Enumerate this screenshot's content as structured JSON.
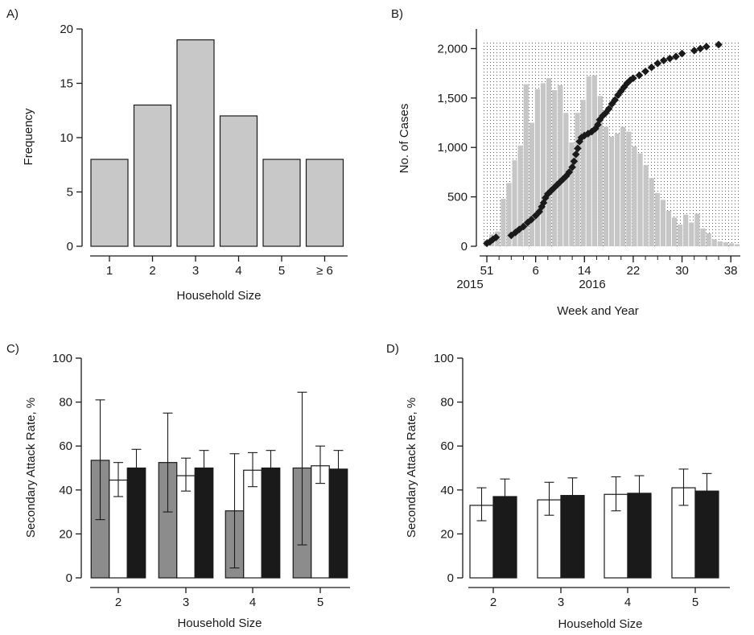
{
  "chart_data": [
    {
      "panel": "A)",
      "type": "bar",
      "categories": [
        "1",
        "2",
        "3",
        "4",
        "5",
        "≥ 6"
      ],
      "values": [
        8,
        13,
        19,
        12,
        8,
        8
      ],
      "xlabel": "Household Size",
      "ylabel": "Frequency",
      "ylim": [
        0,
        20
      ],
      "yticks": [
        "0",
        "5",
        "10",
        "15",
        "20"
      ],
      "colors": {
        "bar": "#c8c8c8"
      }
    },
    {
      "panel": "B)",
      "type": "bar",
      "xlabel": "Week and Year",
      "ylabel": "No. of Cases",
      "ylim": [
        0,
        2200
      ],
      "yticks": [
        "0",
        "500",
        "1,000",
        "1,500",
        "2,000"
      ],
      "xticks": [
        "51",
        "6",
        "14",
        "22",
        "30",
        "38"
      ],
      "year_labels": [
        "2015",
        "2016"
      ],
      "weeks": [
        "2015-W51",
        "2015-W52",
        "2015-W53",
        "2016-W01",
        "2016-W02",
        "2016-W03",
        "2016-W04",
        "2016-W05",
        "2016-W06",
        "2016-W07",
        "2016-W08",
        "2016-W09",
        "2016-W10",
        "2016-W11",
        "2016-W12",
        "2016-W13",
        "2016-W14",
        "2016-W15",
        "2016-W16",
        "2016-W17",
        "2016-W18",
        "2016-W19",
        "2016-W20",
        "2016-W21",
        "2016-W22",
        "2016-W23",
        "2016-W24",
        "2016-W25",
        "2016-W26",
        "2016-W27",
        "2016-W28",
        "2016-W29",
        "2016-W30",
        "2016-W31",
        "2016-W32",
        "2016-W33",
        "2016-W34",
        "2016-W35",
        "2016-W36",
        "2016-W37",
        "2016-W38",
        "2016-W39",
        "2016-W40",
        "2016-W41",
        "2016-W42"
      ],
      "weekly_cases": [
        60,
        120,
        150,
        480,
        640,
        870,
        1020,
        1640,
        1250,
        1590,
        1650,
        1700,
        1580,
        1630,
        1350,
        1050,
        1350,
        1480,
        1720,
        1730,
        1520,
        1210,
        1110,
        1140,
        1210,
        1160,
        1010,
        940,
        820,
        690,
        540,
        470,
        360,
        290,
        220,
        320,
        240,
        330,
        180,
        130,
        70,
        50,
        40,
        30,
        20
      ],
      "cumulative_households": [
        [
          51,
          30
        ],
        [
          51.5,
          45
        ],
        [
          52,
          70
        ],
        [
          52.5,
          90
        ],
        [
          2,
          110
        ],
        [
          2.7,
          140
        ],
        [
          3.3,
          170
        ],
        [
          4,
          200
        ],
        [
          4.7,
          240
        ],
        [
          5.3,
          270
        ],
        [
          6,
          310
        ],
        [
          6.6,
          350
        ],
        [
          7,
          400
        ],
        [
          7.3,
          440
        ],
        [
          7.6,
          490
        ],
        [
          8,
          530
        ],
        [
          8.5,
          560
        ],
        [
          9,
          590
        ],
        [
          9.5,
          620
        ],
        [
          10,
          650
        ],
        [
          10.5,
          680
        ],
        [
          11,
          710
        ],
        [
          11.5,
          750
        ],
        [
          12,
          800
        ],
        [
          12.3,
          860
        ],
        [
          12.6,
          930
        ],
        [
          12.9,
          990
        ],
        [
          13.2,
          1060
        ],
        [
          13.5,
          1100
        ],
        [
          14,
          1120
        ],
        [
          14.6,
          1140
        ],
        [
          15.2,
          1160
        ],
        [
          15.8,
          1190
        ],
        [
          16.2,
          1230
        ],
        [
          16.5,
          1280
        ],
        [
          17,
          1320
        ],
        [
          17.5,
          1350
        ],
        [
          18,
          1390
        ],
        [
          18.5,
          1440
        ],
        [
          19,
          1480
        ],
        [
          19.5,
          1530
        ],
        [
          20,
          1570
        ],
        [
          20.5,
          1610
        ],
        [
          21,
          1650
        ],
        [
          21.5,
          1680
        ],
        [
          22,
          1700
        ],
        [
          23,
          1730
        ],
        [
          24,
          1770
        ],
        [
          25,
          1810
        ],
        [
          26,
          1850
        ],
        [
          27,
          1880
        ],
        [
          28,
          1900
        ],
        [
          29,
          1920
        ],
        [
          30,
          1950
        ],
        [
          32,
          1980
        ],
        [
          33,
          2000
        ],
        [
          34,
          2020
        ],
        [
          36,
          2040
        ]
      ],
      "colors": {
        "bar": "#c6c6c6",
        "points": "#1a1a1a",
        "dots": "#555555"
      }
    },
    {
      "panel": "C)",
      "type": "bar",
      "categories": [
        "2",
        "3",
        "4",
        "5"
      ],
      "xlabel": "Household Size",
      "ylabel": "Secondary Attack Rate, %",
      "ylim": [
        0,
        100
      ],
      "yticks": [
        "0",
        "20",
        "40",
        "60",
        "80",
        "100"
      ],
      "series": [
        {
          "values": [
            53.5,
            52.5,
            30.5,
            50
          ],
          "lower": [
            26.5,
            30,
            4.5,
            15
          ],
          "upper": [
            81,
            75,
            56.5,
            84.5
          ],
          "color": "#8c8c8c"
        },
        {
          "values": [
            44.5,
            46.5,
            49,
            51
          ],
          "lower": [
            37,
            39.5,
            41.5,
            43
          ],
          "upper": [
            52.5,
            54.5,
            57,
            60
          ],
          "color": "#ffffff"
        },
        {
          "values": [
            50,
            50,
            50,
            49.5
          ],
          "lower": [
            42,
            42,
            42,
            41.5
          ],
          "upper": [
            58.5,
            58,
            58,
            58
          ],
          "color": "#1a1a1a"
        }
      ]
    },
    {
      "panel": "D)",
      "type": "bar",
      "categories": [
        "2",
        "3",
        "4",
        "5"
      ],
      "xlabel": "Household Size",
      "ylabel": "Secondary Attack Rate, %",
      "ylim": [
        0,
        100
      ],
      "yticks": [
        "0",
        "20",
        "40",
        "60",
        "80",
        "100"
      ],
      "series": [
        {
          "values": [
            33,
            35.5,
            38,
            41
          ],
          "lower": [
            26,
            28.5,
            30.5,
            33
          ],
          "upper": [
            41,
            43.5,
            46,
            49.5
          ],
          "color": "#ffffff"
        },
        {
          "values": [
            37,
            37.5,
            38.5,
            39.5
          ],
          "lower": [
            29,
            30,
            31,
            31.5
          ],
          "upper": [
            45,
            45.5,
            46.5,
            47.5
          ],
          "color": "#1a1a1a"
        }
      ]
    }
  ]
}
